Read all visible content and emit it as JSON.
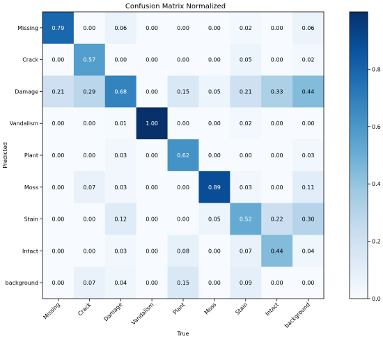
{
  "chart_data": {
    "type": "heatmap",
    "title": "Confusion Matrix Normalized",
    "xlabel": "True",
    "ylabel": "Predicted",
    "x_categories": [
      "Missing",
      "Crack",
      "Damage",
      "Vandalism",
      "Plant",
      "Moss",
      "Stain",
      "Intact",
      "background"
    ],
    "y_categories": [
      "Missing",
      "Crack",
      "Damage",
      "Vandalism",
      "Plant",
      "Moss",
      "Stain",
      "Intact",
      "background"
    ],
    "values": [
      [
        0.79,
        0.0,
        0.06,
        0.0,
        0.0,
        0.0,
        0.02,
        0.0,
        0.06
      ],
      [
        0.0,
        0.57,
        0.0,
        0.0,
        0.0,
        0.0,
        0.05,
        0.0,
        0.02
      ],
      [
        0.21,
        0.29,
        0.68,
        0.0,
        0.15,
        0.05,
        0.21,
        0.33,
        0.44
      ],
      [
        0.0,
        0.0,
        0.01,
        1.0,
        0.0,
        0.0,
        0.02,
        0.0,
        0.0
      ],
      [
        0.0,
        0.0,
        0.03,
        0.0,
        0.62,
        0.0,
        0.0,
        0.0,
        0.03
      ],
      [
        0.0,
        0.07,
        0.03,
        0.0,
        0.0,
        0.89,
        0.03,
        0.0,
        0.11
      ],
      [
        0.0,
        0.0,
        0.12,
        0.0,
        0.0,
        0.05,
        0.52,
        0.22,
        0.3
      ],
      [
        0.0,
        0.0,
        0.03,
        0.0,
        0.08,
        0.0,
        0.07,
        0.44,
        0.04
      ],
      [
        0.0,
        0.07,
        0.04,
        0.0,
        0.15,
        0.0,
        0.09,
        0.0,
        0.0
      ]
    ],
    "colorbar": {
      "colormap": "Blues",
      "range": [
        0,
        1
      ],
      "ticks": [
        0.0,
        0.2,
        0.4,
        0.6,
        0.8
      ],
      "tick_labels": [
        "0.0",
        "0.2",
        "0.4",
        "0.6",
        "0.8"
      ]
    },
    "grid": false
  }
}
